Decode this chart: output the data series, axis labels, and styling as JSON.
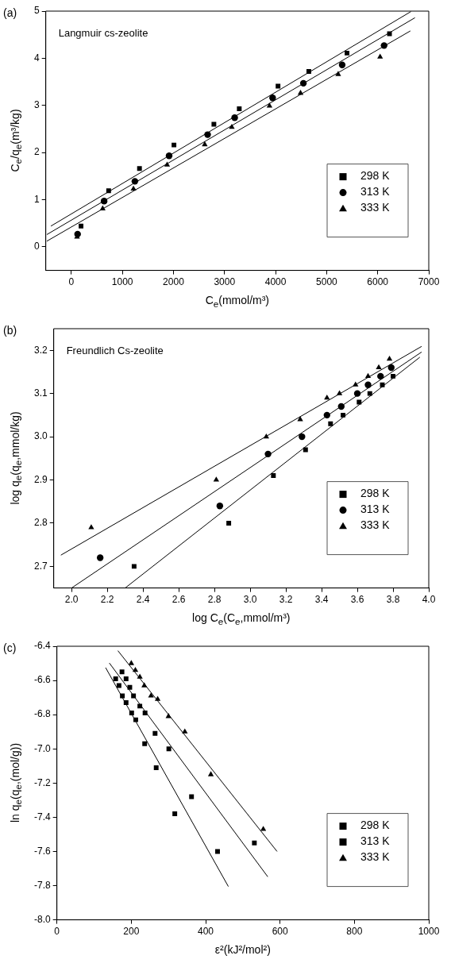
{
  "chart_data": [
    {
      "type": "scatter",
      "annotations": [
        "(a)",
        "Langmuir cs-zeolite"
      ],
      "xlabel": "C$_{e}$(mmol/m³)",
      "ylabel": "C$_{e}$/q$_{e}$(m³/kg)",
      "xlim": [
        -500,
        7000
      ],
      "xticks": [
        0,
        1000,
        2000,
        3000,
        4000,
        5000,
        6000,
        7000
      ],
      "ylim": [
        -0.5,
        5
      ],
      "yticks": [
        0,
        1,
        2,
        3,
        4,
        5
      ],
      "grid": false,
      "legend": "bottom right",
      "series": [
        {
          "name": "298 K",
          "color": "#000000",
          "marker": "square",
          "x": [
            190,
            731,
            1335,
            2010,
            2792,
            3289,
            4048,
            4651,
            5399,
            6231
          ],
          "values": [
            0.44,
            1.19,
            1.66,
            2.16,
            2.6,
            2.93,
            3.41,
            3.72,
            4.11,
            4.52
          ]
        },
        {
          "name": "313 K",
          "color": "#000000",
          "marker": "circle",
          "x": [
            123,
            642,
            1245,
            1915,
            2669,
            3199,
            3942,
            4545,
            5304,
            6125
          ],
          "values": [
            0.27,
            0.97,
            1.39,
            1.93,
            2.38,
            2.74,
            3.16,
            3.47,
            3.86,
            4.27
          ]
        },
        {
          "name": "333 K",
          "color": "#000000",
          "marker": "triangle",
          "x": [
            112,
            614,
            1217,
            1876,
            2613,
            3143,
            3881,
            4489,
            5226,
            6047
          ],
          "values": [
            0.21,
            0.81,
            1.23,
            1.74,
            2.17,
            2.54,
            2.99,
            3.26,
            3.66,
            4.03
          ]
        },
        {
          "type": "line",
          "color": "#000000",
          "marker": "none",
          "x": [
            -400,
            6650
          ],
          "values": [
            0.44,
            4.99
          ]
        },
        {
          "type": "line",
          "color": "#000000",
          "marker": "none",
          "x": [
            -480,
            6730
          ],
          "values": [
            0.26,
            4.86
          ]
        },
        {
          "type": "line",
          "color": "#000000",
          "marker": "none",
          "x": [
            -480,
            6640
          ],
          "values": [
            0.12,
            4.58
          ]
        }
      ]
    },
    {
      "type": "scatter",
      "annotations": [
        "(b)",
        "Freundlich Cs-zeolite"
      ],
      "xlabel": "log C$_{e}$(C$_{e}$,mmol/m³)",
      "ylabel": "log q$_{e}$(q$_{e}$,mmol/kg)",
      "xlim": [
        1.9,
        4.0
      ],
      "xticks": [
        {
          "value": 2,
          "label": "2.0"
        },
        2.2,
        2.4,
        2.6,
        2.8,
        {
          "value": 3,
          "label": "3.0"
        },
        3.2,
        3.4,
        3.6,
        3.8,
        {
          "value": 4,
          "label": "4.0"
        }
      ],
      "ylim": [
        2.65,
        3.25
      ],
      "yticks": [
        2.7,
        2.8,
        2.9,
        {
          "value": 3,
          "label": "3.0"
        },
        3.1,
        3.2
      ],
      "grid": false,
      "legend": "bottom right",
      "series": [
        {
          "name": "298 K",
          "color": "#000000",
          "marker": "square",
          "x": [
            2.35,
            2.88,
            3.13,
            3.31,
            3.45,
            3.52,
            3.61,
            3.67,
            3.74,
            3.8
          ],
          "values": [
            2.7,
            2.8,
            2.91,
            2.97,
            3.03,
            3.05,
            3.08,
            3.1,
            3.12,
            3.14
          ]
        },
        {
          "name": "313 K",
          "color": "#000000",
          "marker": "circle",
          "x": [
            2.16,
            2.83,
            3.1,
            3.29,
            3.43,
            3.51,
            3.6,
            3.66,
            3.73,
            3.79
          ],
          "values": [
            2.72,
            2.84,
            2.96,
            3.0,
            3.05,
            3.07,
            3.1,
            3.12,
            3.14,
            3.16
          ]
        },
        {
          "name": "333 K",
          "color": "#000000",
          "marker": "triangle",
          "x": [
            2.11,
            2.81,
            3.09,
            3.28,
            3.43,
            3.5,
            3.59,
            3.66,
            3.72,
            3.78
          ],
          "values": [
            2.79,
            2.9,
            3.0,
            3.04,
            3.09,
            3.1,
            3.12,
            3.14,
            3.16,
            3.18
          ]
        },
        {
          "type": "line",
          "color": "#000000",
          "marker": "none",
          "x": [
            2.3,
            3.95
          ],
          "values": [
            2.65,
            3.184
          ]
        },
        {
          "type": "line",
          "color": "#000000",
          "marker": "none",
          "x": [
            2.0,
            3.96
          ],
          "values": [
            2.65,
            3.196
          ]
        },
        {
          "type": "line",
          "color": "#000000",
          "marker": "none",
          "x": [
            1.94,
            3.96
          ],
          "values": [
            2.726,
            3.209
          ]
        }
      ]
    },
    {
      "type": "scatter",
      "annotations": [
        "(c)"
      ],
      "xlabel": "ε²(kJ²/mol²)",
      "ylabel": "ln q$_{e}$(q$_{e}$,(mol/g))",
      "xlim": [
        0,
        1000
      ],
      "xticks": [
        0,
        200,
        400,
        600,
        800,
        1000
      ],
      "ylim": [
        -8.0,
        -6.4
      ],
      "yticks": [
        {
          "value": -8,
          "label": "-8.0"
        },
        -7.8,
        -7.6,
        -7.4,
        -7.2,
        {
          "value": -7,
          "label": "-7.0"
        },
        -6.8,
        -6.6,
        -6.4
      ],
      "grid": false,
      "legend": "bottom right",
      "series": [
        {
          "name": "298 K",
          "color": "#000000",
          "marker": "square",
          "x": [
            158,
            167,
            176,
            186,
            201,
            212,
            236,
            267,
            317,
            432
          ],
          "values": [
            -6.59,
            -6.63,
            -6.69,
            -6.73,
            -6.79,
            -6.83,
            -6.97,
            -7.11,
            -7.38,
            -7.6
          ]
        },
        {
          "name": "313 K",
          "color": "#000000",
          "marker": "square",
          "x": [
            175,
            186,
            196,
            206,
            223,
            237,
            264,
            301,
            362,
            531
          ],
          "values": [
            -6.55,
            -6.59,
            -6.64,
            -6.69,
            -6.75,
            -6.79,
            -6.91,
            -7.0,
            -7.28,
            -7.55
          ]
        },
        {
          "name": "333 K",
          "color": "#000000",
          "marker": "triangle",
          "x": [
            200,
            211,
            223,
            235,
            253,
            271,
            300,
            344,
            414,
            555
          ],
          "values": [
            -6.5,
            -6.54,
            -6.58,
            -6.63,
            -6.69,
            -6.71,
            -6.81,
            -6.9,
            -7.15,
            -7.47
          ]
        },
        {
          "type": "line",
          "color": "#000000",
          "marker": "none",
          "x": [
            131,
            461
          ],
          "values": [
            -6.525,
            -7.805
          ]
        },
        {
          "type": "line",
          "color": "#000000",
          "marker": "none",
          "x": [
            141,
            567
          ],
          "values": [
            -6.498,
            -7.748
          ]
        },
        {
          "type": "line",
          "color": "#000000",
          "marker": "none",
          "x": [
            164,
            592
          ],
          "values": [
            -6.426,
            -7.6
          ]
        }
      ]
    }
  ]
}
